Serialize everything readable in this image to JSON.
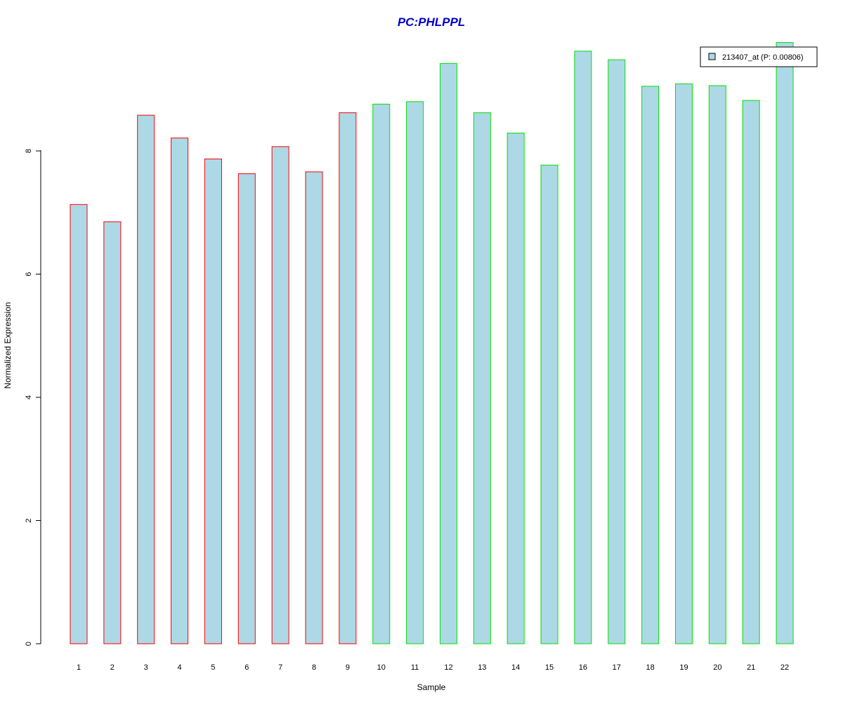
{
  "chart_data": {
    "type": "bar",
    "title": "PC:PHLPPL",
    "xlabel": "Sample",
    "ylabel": "Normalized Expression",
    "ylim": [
      0,
      9.8
    ],
    "yticks": [
      0,
      2,
      4,
      6,
      8
    ],
    "categories": [
      "1",
      "2",
      "3",
      "4",
      "5",
      "6",
      "7",
      "8",
      "9",
      "10",
      "11",
      "12",
      "13",
      "14",
      "15",
      "16",
      "17",
      "18",
      "19",
      "20",
      "21",
      "22"
    ],
    "values": [
      7.13,
      6.85,
      8.58,
      8.21,
      7.87,
      7.63,
      8.07,
      7.66,
      8.62,
      8.76,
      8.8,
      9.42,
      8.62,
      8.29,
      7.77,
      9.62,
      9.48,
      9.05,
      9.09,
      9.06,
      8.82,
      9.76
    ],
    "groups": [
      {
        "samples": [
          1,
          2,
          3,
          4,
          5,
          6,
          7,
          8,
          9
        ],
        "border_color": "#ff0000"
      },
      {
        "samples": [
          10,
          11,
          12,
          13,
          14,
          15,
          16,
          17,
          18,
          19,
          20,
          21,
          22
        ],
        "border_color": "#00e000"
      }
    ],
    "fill_color": "#add8e6",
    "title_color": "#0000cc",
    "legend": {
      "entries": [
        {
          "label": "213407_at (P: 0.00806)",
          "color": "#add8e6"
        }
      ],
      "position": "top-right"
    },
    "grid": false
  }
}
